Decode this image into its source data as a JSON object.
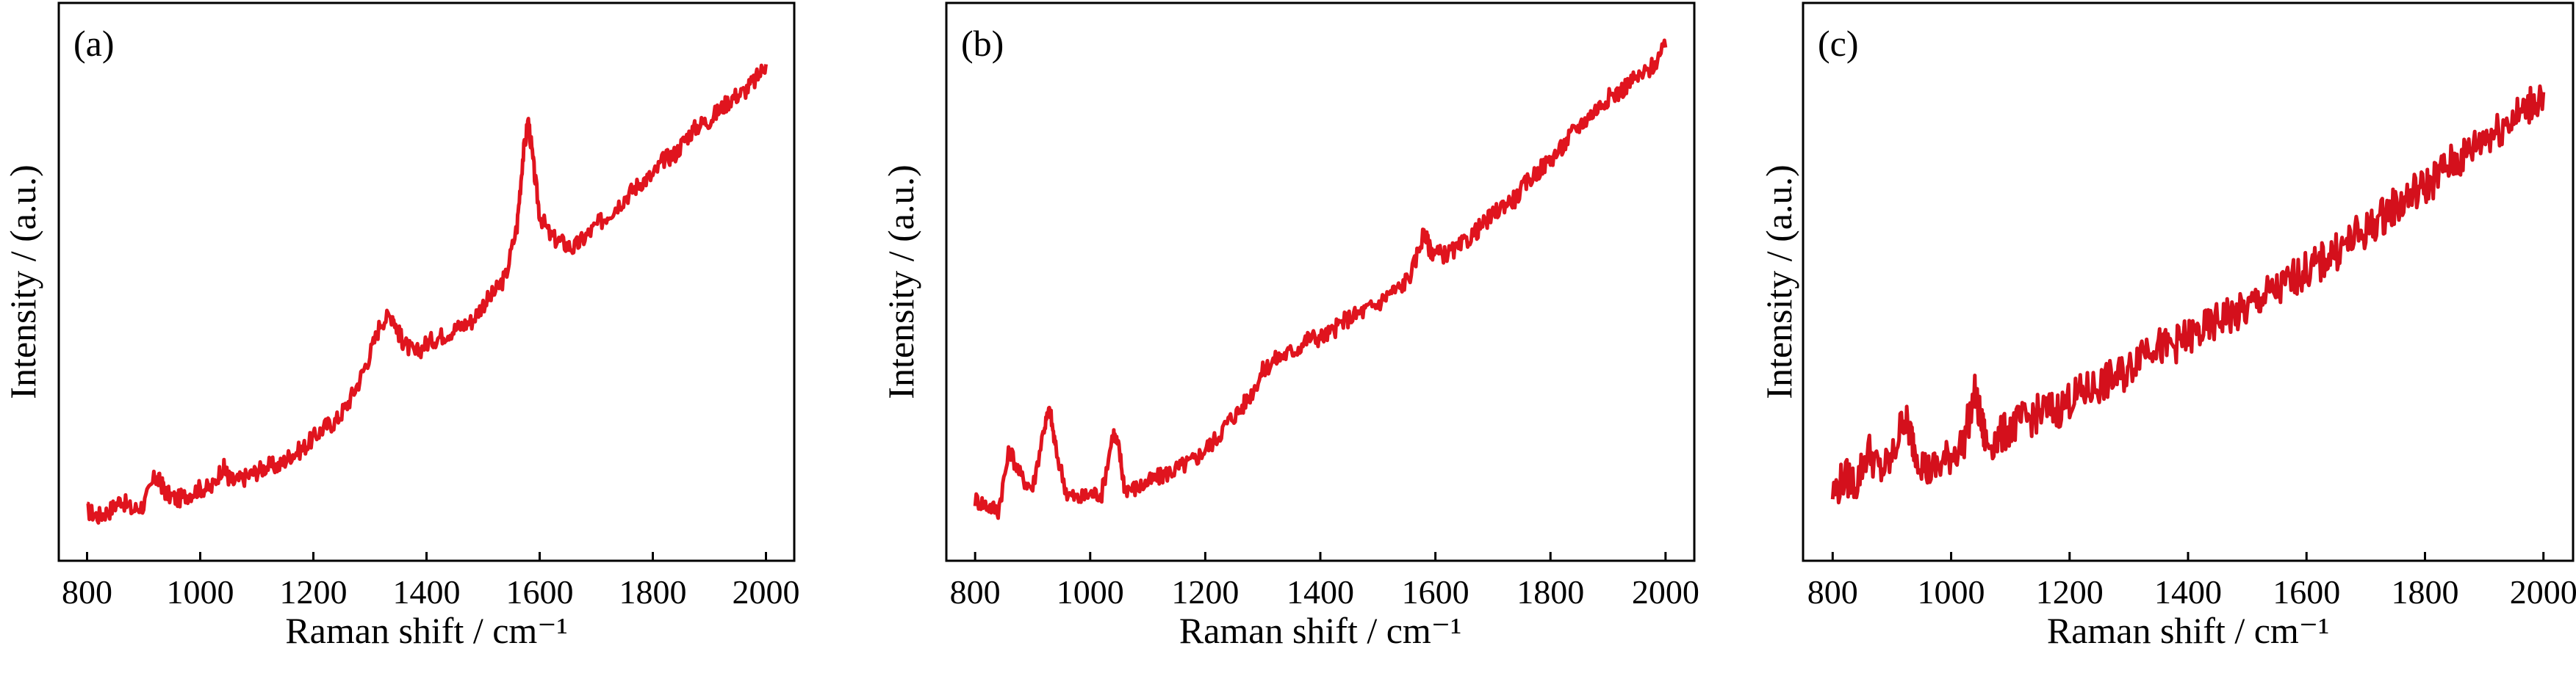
{
  "chart_data": [
    {
      "type": "line",
      "panel_label": "(a)",
      "xlabel": "Raman shift / cm⁻¹",
      "ylabel": "Intensity / (a.u.)",
      "xlim": [
        750,
        2050
      ],
      "ylim": [
        0,
        1
      ],
      "xticks": [
        "800",
        "1000",
        "1200",
        "1400",
        "1600",
        "1800",
        "2000"
      ],
      "line_color": "#e0141e",
      "grid": false,
      "series": [
        {
          "x": [
            800,
            820,
            840,
            860,
            880,
            900,
            920,
            930,
            940,
            960,
            980,
            1000,
            1020,
            1040,
            1050,
            1060,
            1080,
            1100,
            1120,
            1140,
            1160,
            1180,
            1200,
            1220,
            1240,
            1260,
            1280,
            1300,
            1320,
            1340,
            1350,
            1360,
            1380,
            1400,
            1420,
            1440,
            1460,
            1480,
            1500,
            1520,
            1540,
            1560,
            1570,
            1580,
            1590,
            1600,
            1620,
            1640,
            1660,
            1680,
            1700,
            1720,
            1740,
            1760,
            1780,
            1800,
            1820,
            1840,
            1860,
            1880,
            1900,
            1920,
            1940,
            1960,
            1980,
            2000
          ],
          "y": [
            0.09,
            0.08,
            0.09,
            0.11,
            0.09,
            0.1,
            0.15,
            0.14,
            0.12,
            0.11,
            0.12,
            0.13,
            0.13,
            0.17,
            0.15,
            0.14,
            0.15,
            0.16,
            0.17,
            0.17,
            0.19,
            0.2,
            0.22,
            0.24,
            0.25,
            0.28,
            0.32,
            0.37,
            0.43,
            0.44,
            0.41,
            0.39,
            0.37,
            0.39,
            0.4,
            0.41,
            0.42,
            0.43,
            0.46,
            0.48,
            0.51,
            0.6,
            0.72,
            0.79,
            0.7,
            0.62,
            0.58,
            0.57,
            0.56,
            0.58,
            0.6,
            0.62,
            0.64,
            0.66,
            0.68,
            0.69,
            0.72,
            0.73,
            0.76,
            0.78,
            0.79,
            0.81,
            0.83,
            0.84,
            0.86,
            0.89
          ]
        }
      ]
    },
    {
      "type": "line",
      "panel_label": "(b)",
      "xlabel": "Raman shift / cm⁻¹",
      "ylabel": "Intensity / (a.u.)",
      "xlim": [
        750,
        2050
      ],
      "ylim": [
        0,
        1
      ],
      "xticks": [
        "800",
        "1000",
        "1200",
        "1400",
        "1600",
        "1800",
        "2000"
      ],
      "line_color": "#e0141e",
      "grid": false,
      "series": [
        {
          "x": [
            800,
            820,
            840,
            860,
            880,
            900,
            920,
            930,
            940,
            960,
            980,
            1000,
            1020,
            1040,
            1050,
            1060,
            1080,
            1100,
            1120,
            1140,
            1160,
            1180,
            1200,
            1220,
            1240,
            1260,
            1280,
            1300,
            1320,
            1340,
            1360,
            1380,
            1400,
            1420,
            1440,
            1460,
            1480,
            1500,
            1520,
            1540,
            1560,
            1580,
            1590,
            1600,
            1620,
            1640,
            1660,
            1680,
            1700,
            1720,
            1740,
            1760,
            1780,
            1800,
            1820,
            1840,
            1860,
            1880,
            1900,
            1920,
            1940,
            1960,
            1980,
            2000
          ],
          "y": [
            0.11,
            0.1,
            0.09,
            0.2,
            0.15,
            0.13,
            0.24,
            0.27,
            0.2,
            0.12,
            0.11,
            0.12,
            0.12,
            0.23,
            0.2,
            0.13,
            0.13,
            0.14,
            0.15,
            0.16,
            0.17,
            0.18,
            0.2,
            0.22,
            0.25,
            0.27,
            0.3,
            0.34,
            0.36,
            0.37,
            0.38,
            0.4,
            0.4,
            0.41,
            0.43,
            0.44,
            0.45,
            0.46,
            0.48,
            0.49,
            0.52,
            0.59,
            0.56,
            0.55,
            0.55,
            0.56,
            0.58,
            0.6,
            0.62,
            0.64,
            0.65,
            0.68,
            0.7,
            0.72,
            0.74,
            0.77,
            0.79,
            0.81,
            0.83,
            0.84,
            0.86,
            0.87,
            0.89,
            0.92
          ]
        }
      ]
    },
    {
      "type": "line",
      "panel_label": "(c)",
      "xlabel": "Raman shift / cm⁻¹",
      "ylabel": "Intensity / (a.u.)",
      "xlim": [
        750,
        2050
      ],
      "ylim": [
        0,
        1
      ],
      "xticks": [
        "800",
        "1000",
        "1200",
        "1400",
        "1600",
        "1800",
        "2000"
      ],
      "line_color": "#d4101c",
      "grid": false,
      "series": [
        {
          "x": [
            800,
            820,
            840,
            860,
            880,
            900,
            920,
            930,
            940,
            960,
            980,
            1000,
            1020,
            1040,
            1050,
            1060,
            1080,
            1100,
            1120,
            1140,
            1160,
            1180,
            1200,
            1220,
            1240,
            1260,
            1280,
            1300,
            1320,
            1340,
            1360,
            1380,
            1400,
            1420,
            1440,
            1460,
            1480,
            1500,
            1520,
            1540,
            1560,
            1580,
            1600,
            1620,
            1640,
            1660,
            1680,
            1700,
            1720,
            1740,
            1760,
            1780,
            1800,
            1820,
            1840,
            1860,
            1880,
            1900,
            1920,
            1940,
            1960,
            1980,
            2000
          ],
          "y": [
            0.12,
            0.15,
            0.14,
            0.2,
            0.16,
            0.18,
            0.26,
            0.23,
            0.2,
            0.16,
            0.17,
            0.19,
            0.21,
            0.3,
            0.25,
            0.21,
            0.22,
            0.24,
            0.25,
            0.26,
            0.27,
            0.27,
            0.29,
            0.3,
            0.31,
            0.32,
            0.33,
            0.34,
            0.38,
            0.39,
            0.38,
            0.39,
            0.4,
            0.41,
            0.42,
            0.44,
            0.44,
            0.45,
            0.47,
            0.48,
            0.49,
            0.51,
            0.52,
            0.53,
            0.55,
            0.56,
            0.58,
            0.59,
            0.61,
            0.63,
            0.64,
            0.66,
            0.67,
            0.69,
            0.71,
            0.72,
            0.74,
            0.76,
            0.77,
            0.79,
            0.8,
            0.82,
            0.84
          ]
        }
      ]
    }
  ]
}
